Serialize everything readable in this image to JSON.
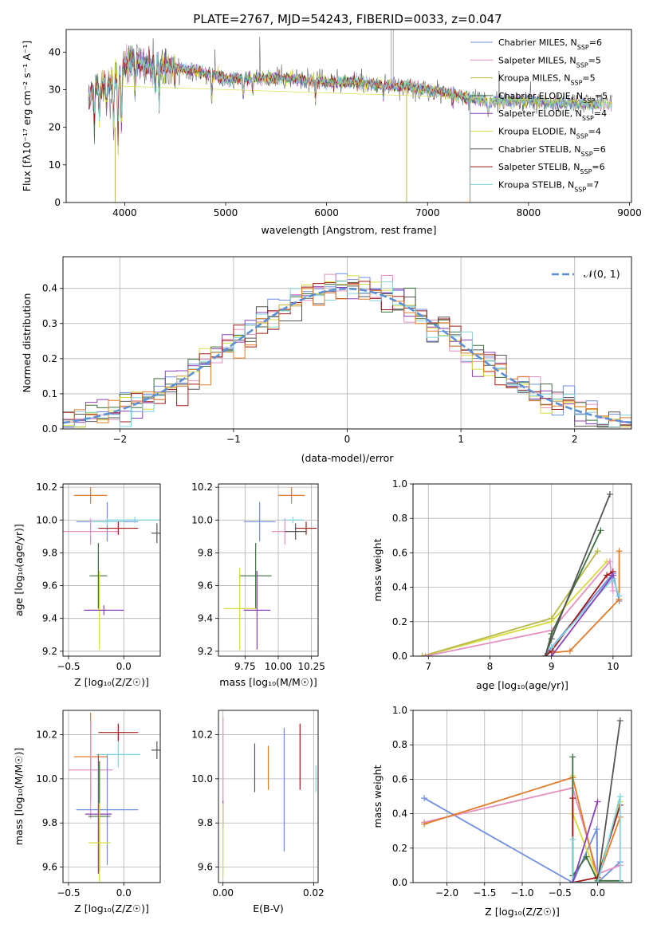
{
  "figure": {
    "title": "PLATE=2767, MJD=54243, FIBERID=0033, z=0.047"
  },
  "colors": {
    "Chabrier MILES": "#6f8fe0",
    "Salpeter MILES": "#e58fc2",
    "Kroupa MILES": "#b8b84a",
    "Chabrier ELODIE": "#3c6e3c",
    "Salpeter ELODIE": "#8c3fb8",
    "Kroupa ELODIE": "#d8dc3a",
    "Chabrier STELIB": "#555555",
    "Salpeter STELIB": "#a01818",
    "Kroupa STELIB": "#7fd4dc",
    "orange": "#e07b28",
    "normal": "#5b8fd6"
  },
  "chart_data": [
    {
      "type": "line",
      "name": "spectrum",
      "xlabel": "wavelength [Angstrom, rest frame]",
      "ylabel": "Flux [fλ10⁻¹⁷ erg cm⁻² s⁻¹ A⁻¹]",
      "xlim": [
        3420,
        9020
      ],
      "ylim": [
        0,
        46
      ],
      "xticks": [
        "4000",
        "5000",
        "6000",
        "7000",
        "8000",
        "9000"
      ],
      "yticks": [
        "0",
        "10",
        "20",
        "30",
        "40"
      ],
      "legend_position": "upper right",
      "legend": [
        {
          "label": "Chabrier MILES",
          "nssp": "6"
        },
        {
          "label": "Salpeter MILES",
          "nssp": "5"
        },
        {
          "label": "Kroupa MILES",
          "nssp": "5"
        },
        {
          "label": "Chabrier ELODIE",
          "nssp": "5"
        },
        {
          "label": "Salpeter ELODIE",
          "nssp": "4"
        },
        {
          "label": "Kroupa ELODIE",
          "nssp": "4"
        },
        {
          "label": "Chabrier STELIB",
          "nssp": "6"
        },
        {
          "label": "Salpeter STELIB",
          "nssp": "6"
        },
        {
          "label": "Kroupa STELIB",
          "nssp": "7"
        }
      ],
      "continuum": [
        [
          3650,
          28
        ],
        [
          3700,
          31
        ],
        [
          3800,
          31
        ],
        [
          3900,
          33
        ],
        [
          4000,
          37
        ],
        [
          4100,
          38
        ],
        [
          4200,
          36
        ],
        [
          4400,
          36
        ],
        [
          4700,
          35
        ],
        [
          5000,
          33
        ],
        [
          5300,
          33
        ],
        [
          5600,
          33
        ],
        [
          6000,
          32
        ],
        [
          6300,
          32
        ],
        [
          6600,
          31
        ],
        [
          6800,
          31
        ],
        [
          7000,
          30
        ],
        [
          7200,
          29
        ],
        [
          7400,
          28
        ],
        [
          7600,
          27
        ],
        [
          7800,
          27
        ],
        [
          8000,
          27
        ],
        [
          8200,
          26.5
        ],
        [
          8400,
          26.5
        ],
        [
          8600,
          26
        ],
        [
          8800,
          26
        ]
      ],
      "absorption_features": [
        [
          3700,
          12
        ],
        [
          3750,
          10
        ],
        [
          3820,
          8
        ],
        [
          3890,
          15
        ],
        [
          3934,
          22
        ],
        [
          3968,
          20
        ],
        [
          4102,
          12
        ],
        [
          4300,
          8
        ],
        [
          4340,
          10
        ],
        [
          4861,
          8
        ],
        [
          5175,
          6
        ],
        [
          5270,
          4
        ],
        [
          5890,
          6
        ],
        [
          6563,
          4
        ],
        [
          7250,
          3
        ],
        [
          7600,
          5
        ]
      ],
      "dropout_lines": [
        3905,
        6790,
        7420
      ]
    },
    {
      "type": "line",
      "name": "residual-histogram",
      "xlabel": "(data-model)/error",
      "ylabel": "Normed distribution",
      "xlim": [
        -2.5,
        2.5
      ],
      "ylim": [
        0,
        0.49
      ],
      "xticks": [
        "−2",
        "−1",
        "0",
        "1",
        "2"
      ],
      "yticks": [
        "0.0",
        "0.1",
        "0.2",
        "0.3",
        "0.4"
      ],
      "grid": true,
      "legend_label": "𝒩(0, 1)",
      "normal_curve": {
        "mean": 0,
        "sigma": 1
      }
    },
    {
      "type": "scatter",
      "name": "age-vs-Z",
      "xlabel": "Z [log₁₀(Z/Z☉)]",
      "ylabel": "age  [log₁₀(age/yr)]",
      "xlim": [
        -0.55,
        0.33
      ],
      "ylim": [
        9.17,
        10.22
      ],
      "xticks": [
        "−0.5",
        "0.0"
      ],
      "yticks": [
        "9.2",
        "9.4",
        "9.6",
        "9.8",
        "10.0",
        "10.2"
      ],
      "points": [
        {
          "series": "orange",
          "x": -0.3,
          "y": 10.15,
          "xe": 0.15,
          "ye": 0.05
        },
        {
          "series": "Chabrier MILES",
          "x": -0.15,
          "y": 9.99,
          "xe": 0.28,
          "ye": 0.12
        },
        {
          "series": "Kroupa STELIB",
          "x": 0.1,
          "y": 10.0,
          "xe": 0.25,
          "ye": 0.02
        },
        {
          "series": "Kroupa STELIB",
          "x": -0.15,
          "y": 9.99,
          "xe": 0.15,
          "ye": 0.02
        },
        {
          "series": "Salpeter MILES",
          "x": -0.3,
          "y": 9.93,
          "xe": 0.25,
          "ye": 0.08
        },
        {
          "series": "Salpeter STELIB",
          "x": -0.05,
          "y": 9.95,
          "xe": 0.18,
          "ye": 0.04
        },
        {
          "series": "Chabrier STELIB",
          "x": 0.3,
          "y": 9.92,
          "xe": 0.05,
          "ye": 0.06
        },
        {
          "series": "Chabrier ELODIE",
          "x": -0.23,
          "y": 9.66,
          "xe": 0.08,
          "ye": 0.2
        },
        {
          "series": "Kroupa ELODIE",
          "x": -0.22,
          "y": 9.45,
          "xe": 0.08,
          "ye": 0.24
        },
        {
          "series": "Salpeter ELODIE",
          "x": -0.18,
          "y": 9.45,
          "xe": 0.18,
          "ye": 0.03
        }
      ]
    },
    {
      "type": "scatter",
      "name": "age-vs-mass",
      "xlabel": "mass [log₁₀(M/M☉)]",
      "ylabel": "",
      "xlim": [
        9.55,
        10.3
      ],
      "ylim": [
        9.17,
        10.22
      ],
      "xticks": [
        "9.75",
        "10.00",
        "10.25"
      ],
      "yticks": [
        "9.2",
        "9.4",
        "9.6",
        "9.8",
        "10.0",
        "10.2"
      ],
      "points": [
        {
          "series": "orange",
          "x": 10.1,
          "y": 10.15,
          "xe": 0.1,
          "ye": 0.05
        },
        {
          "series": "Chabrier MILES",
          "x": 9.86,
          "y": 9.99,
          "xe": 0.12,
          "ye": 0.12
        },
        {
          "series": "Kroupa STELIB",
          "x": 10.11,
          "y": 10.0,
          "xe": 0.08,
          "ye": 0.02
        },
        {
          "series": "Salpeter MILES",
          "x": 10.05,
          "y": 9.93,
          "xe": 0.1,
          "ye": 0.08
        },
        {
          "series": "Salpeter STELIB",
          "x": 10.21,
          "y": 9.95,
          "xe": 0.08,
          "ye": 0.04
        },
        {
          "series": "Chabrier STELIB",
          "x": 10.13,
          "y": 9.93,
          "xe": 0.08,
          "ye": 0.05
        },
        {
          "series": "Chabrier ELODIE",
          "x": 9.83,
          "y": 9.66,
          "xe": 0.12,
          "ye": 0.2
        },
        {
          "series": "Kroupa ELODIE",
          "x": 9.71,
          "y": 9.46,
          "xe": 0.12,
          "ye": 0.25
        },
        {
          "series": "Salpeter ELODIE",
          "x": 9.84,
          "y": 9.45,
          "xe": 0.1,
          "ye": 0.24
        }
      ]
    },
    {
      "type": "line",
      "name": "mass-weight-vs-age",
      "xlabel": "age  [log₁₀(age/yr)]",
      "ylabel": "mass weight",
      "xlim": [
        6.75,
        10.3
      ],
      "ylim": [
        0,
        1.0
      ],
      "xticks": [
        "7",
        "8",
        "9",
        "10"
      ],
      "yticks": [
        "0.0",
        "0.2",
        "0.4",
        "0.6",
        "0.8",
        "1.0"
      ],
      "grid": true,
      "series": [
        {
          "name": "Kroupa ELODIE",
          "points": [
            [
              6.9,
              0.0
            ],
            [
              9.0,
              0.2
            ],
            [
              9.9,
              0.55
            ]
          ]
        },
        {
          "name": "Kroupa MILES",
          "points": [
            [
              6.9,
              0.0
            ],
            [
              9.0,
              0.22
            ],
            [
              9.75,
              0.61
            ]
          ]
        },
        {
          "name": "Salpeter MILES",
          "points": [
            [
              6.95,
              0.0
            ],
            [
              9.0,
              0.15
            ],
            [
              9.95,
              0.55
            ],
            [
              10.0,
              0.38
            ]
          ]
        },
        {
          "name": "Chabrier MILES",
          "points": [
            [
              8.9,
              0.0
            ],
            [
              9.0,
              0.05
            ],
            [
              10.0,
              0.48
            ],
            [
              10.1,
              0.32
            ]
          ]
        },
        {
          "name": "orange",
          "points": [
            [
              9.0,
              0.02
            ],
            [
              9.3,
              0.03
            ],
            [
              10.1,
              0.33
            ],
            [
              10.1,
              0.61
            ]
          ]
        },
        {
          "name": "Salpeter STELIB",
          "points": [
            [
              8.9,
              0.0
            ],
            [
              9.0,
              0.03
            ],
            [
              9.9,
              0.47
            ],
            [
              10.0,
              0.49
            ]
          ]
        },
        {
          "name": "Chabrier ELODIE",
          "points": [
            [
              8.9,
              0.0
            ],
            [
              9.0,
              0.13
            ],
            [
              9.8,
              0.73
            ]
          ]
        },
        {
          "name": "Chabrier STELIB",
          "points": [
            [
              8.9,
              0.0
            ],
            [
              9.0,
              0.1
            ],
            [
              9.95,
              0.94
            ]
          ]
        },
        {
          "name": "Kroupa STELIB",
          "points": [
            [
              9.0,
              0.05
            ],
            [
              10.0,
              0.45
            ],
            [
              10.1,
              0.35
            ]
          ]
        },
        {
          "name": "Salpeter ELODIE",
          "points": [
            [
              9.0,
              0.0
            ],
            [
              10.0,
              0.47
            ]
          ]
        }
      ]
    },
    {
      "type": "scatter",
      "name": "mass-vs-Z",
      "xlabel": "Z [log₁₀(Z/Z☉)]",
      "ylabel": "mass [log₁₀(M/M☉)]",
      "xlim": [
        -0.55,
        0.33
      ],
      "ylim": [
        9.53,
        10.31
      ],
      "xticks": [
        "−0.5",
        "0.0"
      ],
      "yticks": [
        "9.6",
        "9.8",
        "10.0",
        "10.2"
      ],
      "points": [
        {
          "series": "Salpeter STELIB",
          "x": -0.05,
          "y": 10.21,
          "xe": 0.18,
          "ye": 0.04
        },
        {
          "series": "Chabrier STELIB",
          "x": 0.3,
          "y": 10.13,
          "xe": 0.05,
          "ye": 0.04
        },
        {
          "series": "Kroupa STELIB",
          "x": -0.05,
          "y": 10.11,
          "xe": 0.2,
          "ye": 0.06
        },
        {
          "series": "orange",
          "x": -0.3,
          "y": 10.1,
          "xe": 0.15,
          "ye": 0.2
        },
        {
          "series": "Salpeter MILES",
          "x": -0.3,
          "y": 10.04,
          "xe": 0.2,
          "ye": 0.22
        },
        {
          "series": "Chabrier MILES",
          "x": -0.15,
          "y": 9.86,
          "xe": 0.28,
          "ye": 0.25
        },
        {
          "series": "Chabrier ELODIE",
          "x": -0.22,
          "y": 9.83,
          "xe": 0.1,
          "ye": 0.25
        },
        {
          "series": "Salpeter ELODIE",
          "x": -0.23,
          "y": 9.84,
          "xe": 0.12,
          "ye": 0.27
        },
        {
          "series": "Kroupa ELODIE",
          "x": -0.22,
          "y": 9.71,
          "xe": 0.1,
          "ye": 0.18
        }
      ]
    },
    {
      "type": "scatter",
      "name": "mass-vs-ebv",
      "xlabel": "E(B-V)",
      "ylabel": "",
      "xlim": [
        -0.001,
        0.021
      ],
      "ylim": [
        9.53,
        10.31
      ],
      "xticks": [
        "0.00",
        "0.02"
      ],
      "yticks": [
        "9.6",
        "9.8",
        "10.0",
        "10.2"
      ],
      "points": [
        {
          "series": "Salpeter MILES",
          "x": 0.0,
          "y": 10.08,
          "ye": 0.2
        },
        {
          "series": "Salpeter ELODIE",
          "x": 0.0,
          "y": 9.84,
          "ye": 0.06
        },
        {
          "series": "Kroupa ELODIE",
          "x": 0.0,
          "y": 9.72,
          "ye": 0.17
        },
        {
          "series": "Chabrier STELIB",
          "x": 0.007,
          "y": 10.05,
          "ye": 0.11
        },
        {
          "series": "orange",
          "x": 0.01,
          "y": 10.05,
          "ye": 0.1
        },
        {
          "series": "Chabrier MILES",
          "x": 0.0135,
          "y": 9.95,
          "ye": 0.28
        },
        {
          "series": "Salpeter STELIB",
          "x": 0.017,
          "y": 10.1,
          "ye": 0.15
        },
        {
          "series": "Kroupa STELIB",
          "x": 0.0205,
          "y": 10.0,
          "ye": 0.06
        }
      ]
    },
    {
      "type": "line",
      "name": "mass-weight-vs-Z",
      "xlabel": "Z [log₁₀(Z/Z☉)]",
      "ylabel": "mass weight",
      "xlim": [
        -2.45,
        0.45
      ],
      "ylim": [
        0,
        1.0
      ],
      "xticks": [
        "−2.0",
        "−1.5",
        "−1.0",
        "−0.5",
        "0.0"
      ],
      "yticks": [
        "0.0",
        "0.2",
        "0.4",
        "0.6",
        "0.8",
        "1.0"
      ],
      "grid": true,
      "series": [
        {
          "name": "Chabrier MILES",
          "points": [
            [
              -2.3,
              0.49
            ],
            [
              -0.33,
              0.0
            ],
            [
              -0.01,
              0.31
            ],
            [
              0.0,
              0.0
            ],
            [
              0.3,
              0.12
            ]
          ]
        },
        {
          "name": "Salpeter MILES",
          "points": [
            [
              -2.3,
              0.35
            ],
            [
              -0.33,
              0.55
            ],
            [
              0.0,
              0.05
            ],
            [
              0.3,
              0.1
            ]
          ]
        },
        {
          "name": "orange",
          "points": [
            [
              -2.3,
              0.34
            ],
            [
              -0.33,
              0.61
            ],
            [
              0.0,
              0.02
            ],
            [
              0.3,
              0.38
            ]
          ]
        },
        {
          "name": "Kroupa ELODIE",
          "points": [
            [
              -0.33,
              0.62
            ],
            [
              -0.33,
              0.4
            ],
            [
              0.0,
              0.03
            ],
            [
              0.3,
              0.47
            ]
          ]
        },
        {
          "name": "Chabrier ELODIE",
          "points": [
            [
              -0.33,
              0.73
            ],
            [
              -0.33,
              0.04
            ],
            [
              -0.15,
              0.15
            ],
            [
              0.0,
              0.01
            ],
            [
              0.3,
              0.01
            ]
          ]
        },
        {
          "name": "Salpeter STELIB",
          "points": [
            [
              -0.33,
              0.49
            ],
            [
              -0.33,
              0.0
            ],
            [
              0.0,
              0.03
            ],
            [
              0.3,
              0.45
            ]
          ]
        },
        {
          "name": "Chabrier STELIB",
          "points": [
            [
              -0.33,
              0.0
            ],
            [
              0.0,
              0.0
            ],
            [
              0.3,
              0.94
            ]
          ]
        },
        {
          "name": "Kroupa STELIB",
          "points": [
            [
              -0.33,
              0.25
            ],
            [
              -0.33,
              0.0
            ],
            [
              0.0,
              0.0
            ],
            [
              0.3,
              0.5
            ],
            [
              0.3,
              0.0
            ]
          ]
        },
        {
          "name": "Salpeter ELODIE",
          "points": [
            [
              -0.33,
              0.0
            ],
            [
              0.0,
              0.47
            ]
          ]
        }
      ]
    }
  ]
}
